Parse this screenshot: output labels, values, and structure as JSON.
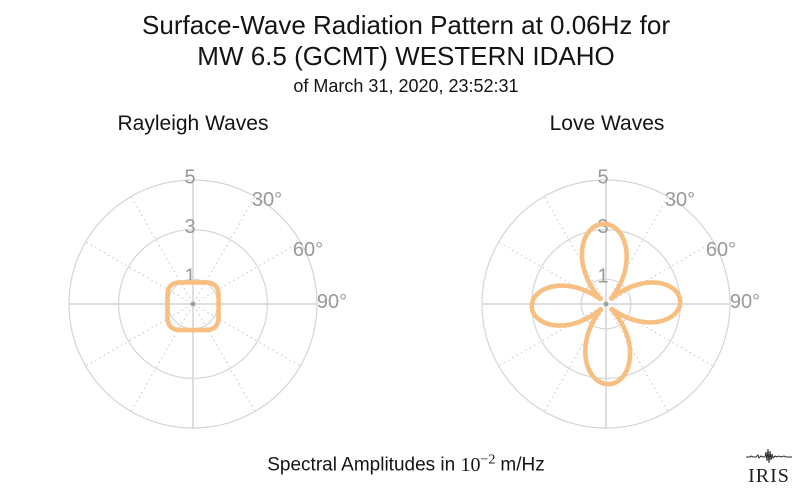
{
  "page": {
    "background": "#ffffff"
  },
  "title": {
    "line1": "Surface-Wave Radiation Pattern at 0.06Hz for",
    "line2": "MW 6.5 (GCMT) WESTERN IDAHO",
    "subtitle": "of March 31, 2020, 23:52:31"
  },
  "caption": {
    "prefix": "Spectral Amplitudes in",
    "base": "10",
    "exponent": "−2",
    "suffix": "m/Hz"
  },
  "logo": {
    "text": "IRIS",
    "seismogram_icon": "seismogram-trace"
  },
  "colors": {
    "curve": "#F7BF81",
    "grid_ring": "#d6d6d6",
    "grid_line": "#c9c9c9",
    "tick_label": "#999999",
    "text": "#141414"
  },
  "chart_data": [
    {
      "type": "polar",
      "title": "Rayleigh Waves",
      "units": "10^-2 m/Hz",
      "r_ticks": [
        1,
        3,
        5
      ],
      "r_max": 5,
      "theta_tick_labels": [
        "30°",
        "60°",
        "90°"
      ],
      "theta_convention": "azimuth clockwise from up",
      "grid": {
        "solid_rings": [
          1,
          3,
          5
        ],
        "dotted_spoke_step_deg": 30,
        "solid_cross": true
      },
      "series": {
        "name": "rayleigh-amplitude",
        "shape": {
          "kind": "rounded_rect",
          "half_width": 1.03,
          "half_up": 0.87,
          "half_down": 1.05,
          "corner": 0.52
        },
        "samples_azimuth_deg": [
          0,
          15,
          30,
          45,
          60,
          75,
          90,
          105,
          120,
          135,
          150,
          165,
          180,
          195,
          210,
          225,
          240,
          255,
          270,
          285,
          300,
          315,
          330,
          345
        ],
        "samples_r": [
          0.87,
          0.91,
          1.0,
          1.1,
          1.09,
          1.05,
          1.03,
          1.06,
          1.13,
          1.18,
          1.12,
          1.07,
          1.05,
          1.07,
          1.12,
          1.18,
          1.13,
          1.06,
          1.03,
          1.05,
          1.09,
          1.1,
          1.0,
          0.91
        ]
      }
    },
    {
      "type": "polar",
      "title": "Love Waves",
      "units": "10^-2 m/Hz",
      "r_ticks": [
        1,
        3,
        5
      ],
      "r_max": 5,
      "theta_tick_labels": [
        "30°",
        "60°",
        "90°"
      ],
      "theta_convention": "azimuth clockwise from up",
      "grid": {
        "solid_rings": [
          1,
          3,
          5
        ],
        "dotted_spoke_step_deg": 30,
        "solid_cross": true
      },
      "series": {
        "name": "love-amplitude",
        "shape": {
          "kind": "rose2",
          "A": 3.1,
          "b": 0.12,
          "c": 0.3,
          "phase_deg": -2
        },
        "samples_azimuth_deg": [
          0,
          15,
          30,
          45,
          60,
          75,
          90,
          105,
          120,
          135,
          150,
          165,
          180,
          195,
          210,
          225,
          240,
          255,
          270,
          285,
          300,
          315,
          330,
          345
        ],
        "samples_r": [
          3.23,
          2.71,
          1.51,
          0.32,
          1.64,
          2.68,
          2.99,
          2.47,
          1.27,
          0.45,
          1.88,
          2.92,
          3.23,
          2.71,
          1.51,
          0.32,
          1.64,
          2.68,
          2.99,
          2.47,
          1.27,
          0.45,
          1.88,
          2.92
        ]
      }
    }
  ]
}
